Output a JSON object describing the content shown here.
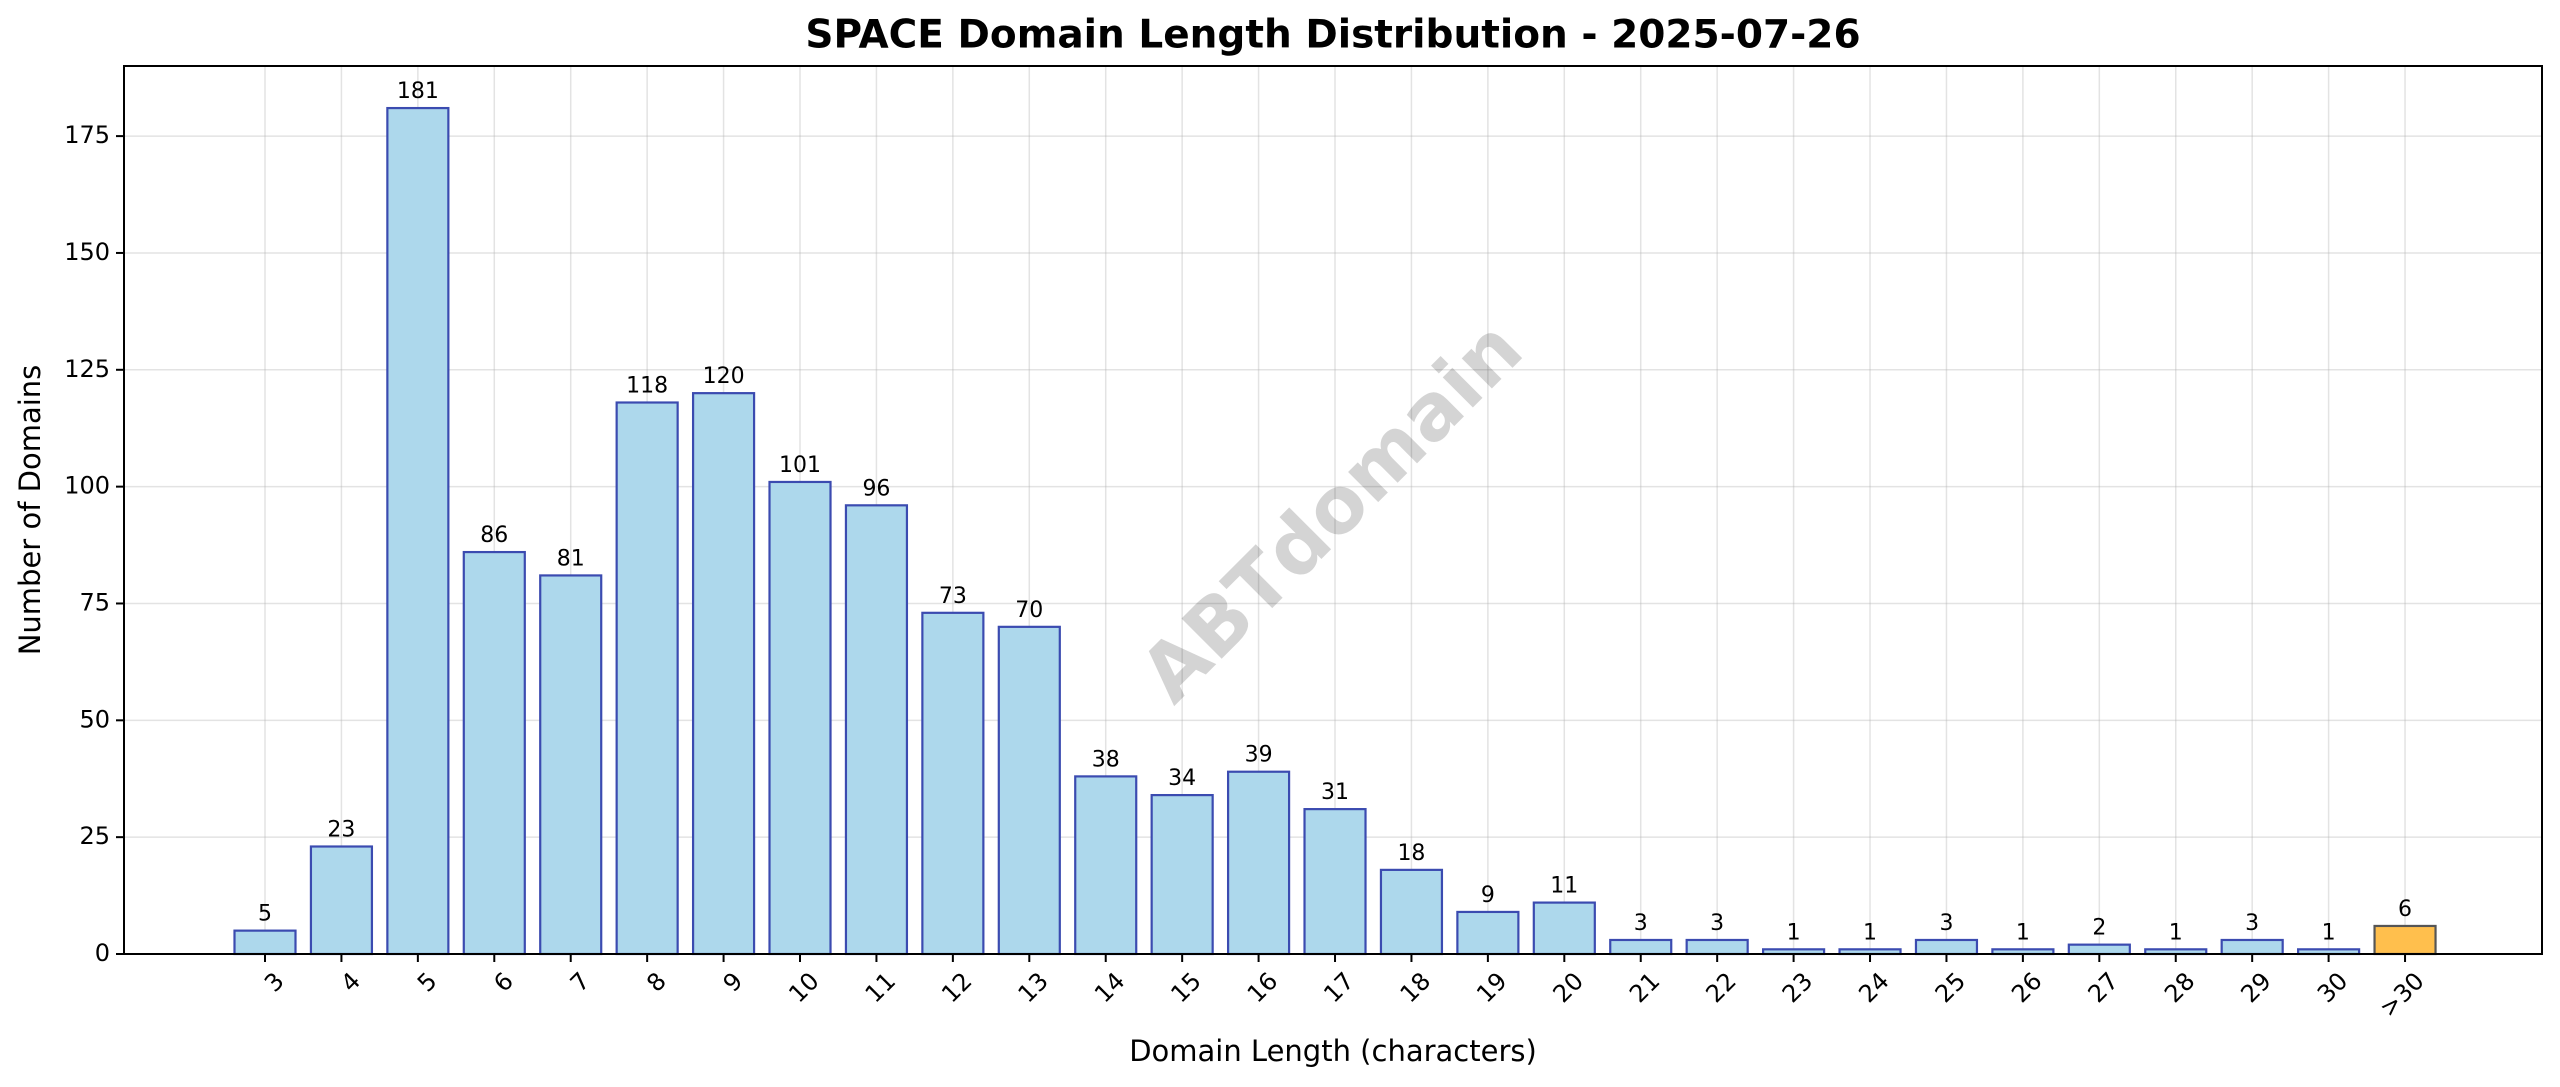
{
  "chart_data": {
    "type": "bar",
    "title": "SPACE Domain Length Distribution - 2025-07-26",
    "xlabel": "Domain Length (characters)",
    "ylabel": "Number of Domains",
    "categories": [
      "3",
      "4",
      "5",
      "6",
      "7",
      "8",
      "9",
      "10",
      "11",
      "12",
      "13",
      "14",
      "15",
      "16",
      "17",
      "18",
      "19",
      "20",
      "21",
      "22",
      "23",
      "24",
      "25",
      "26",
      "27",
      "28",
      "29",
      "30",
      ">30"
    ],
    "values": [
      5,
      23,
      181,
      86,
      81,
      118,
      120,
      101,
      96,
      73,
      70,
      38,
      34,
      39,
      31,
      18,
      9,
      11,
      3,
      3,
      1,
      1,
      3,
      1,
      2,
      1,
      3,
      1,
      6
    ],
    "ylim": [
      0,
      190
    ],
    "yticks": [
      0,
      25,
      50,
      75,
      100,
      125,
      150,
      175
    ],
    "grid": true,
    "watermark": "ABTdomain",
    "colors": {
      "bar_fill": "#add8ec",
      "bar_edge": "#3b4bb0",
      "highlight_fill": "#ffbf4d",
      "highlight_edge": "#555555"
    },
    "highlight_category": ">30"
  }
}
